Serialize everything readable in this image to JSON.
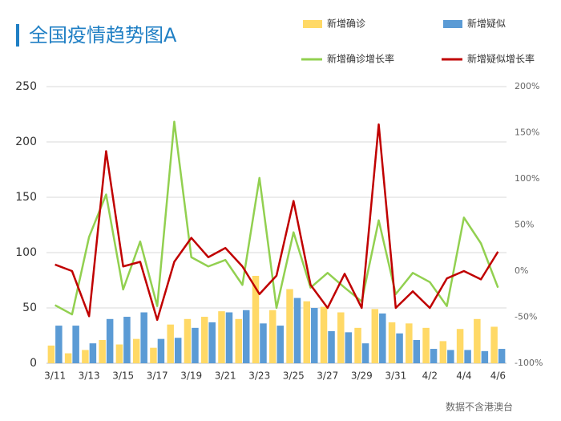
{
  "chart_data": {
    "type": "bar_line",
    "title": "全国疫情趋势图A",
    "source": "数据不含港澳台",
    "categories": [
      "3/11",
      null,
      "3/13",
      null,
      "3/15",
      null,
      "3/17",
      null,
      "3/19",
      null,
      "3/21",
      null,
      "3/23",
      null,
      "3/25",
      null,
      "3/27",
      null,
      "3/29",
      null,
      "3/31",
      null,
      "4/2",
      null,
      "4/4",
      null,
      "4/6"
    ],
    "series": [
      {
        "name": "新增确诊",
        "type": "bar",
        "color": "#ffd966",
        "values": [
          16,
          9,
          12,
          21,
          17,
          22,
          14,
          35,
          40,
          42,
          47,
          40,
          79,
          48,
          67,
          56,
          51,
          46,
          32,
          49,
          37,
          36,
          32,
          20,
          31,
          40,
          33
        ]
      },
      {
        "name": "新增疑似",
        "type": "bar",
        "color": "#5b9bd5",
        "values": [
          34,
          34,
          18,
          40,
          42,
          46,
          22,
          23,
          32,
          37,
          46,
          48,
          36,
          34,
          59,
          50,
          29,
          28,
          18,
          45,
          27,
          21,
          13,
          12,
          12,
          11,
          13
        ]
      },
      {
        "name": "新增确诊增长率",
        "type": "line",
        "axis": "y2",
        "color": "#92d050",
        "values": [
          -37,
          -47,
          37,
          83,
          -20,
          32,
          -38,
          162,
          15,
          5,
          12,
          -15,
          101,
          -40,
          42,
          -18,
          -2,
          -18,
          -33,
          55,
          -25,
          -2,
          -12,
          -38,
          58,
          30,
          -18
        ]
      },
      {
        "name": "新增疑似增长率",
        "type": "line",
        "axis": "y2",
        "color": "#c00000",
        "values": [
          7,
          0,
          -49,
          130,
          5,
          10,
          -53,
          10,
          36,
          15,
          25,
          5,
          -25,
          -5,
          76,
          -15,
          -40,
          -3,
          -40,
          159,
          -40,
          -22,
          -40,
          -8,
          0,
          -9,
          21
        ]
      }
    ],
    "ylim": [
      0,
      250
    ],
    "yticks": [
      0,
      50,
      100,
      150,
      200,
      250
    ],
    "y2lim": [
      -100,
      200
    ],
    "y2ticks": [
      {
        "value": -100,
        "label": "-100%"
      },
      {
        "value": -50,
        "label": "-50%"
      },
      {
        "value": 0,
        "label": "0%"
      },
      {
        "value": 50,
        "label": "50%"
      },
      {
        "value": 100,
        "label": "100%"
      },
      {
        "value": 150,
        "label": "150%"
      },
      {
        "value": 200,
        "label": "200%"
      }
    ],
    "grid": true
  }
}
